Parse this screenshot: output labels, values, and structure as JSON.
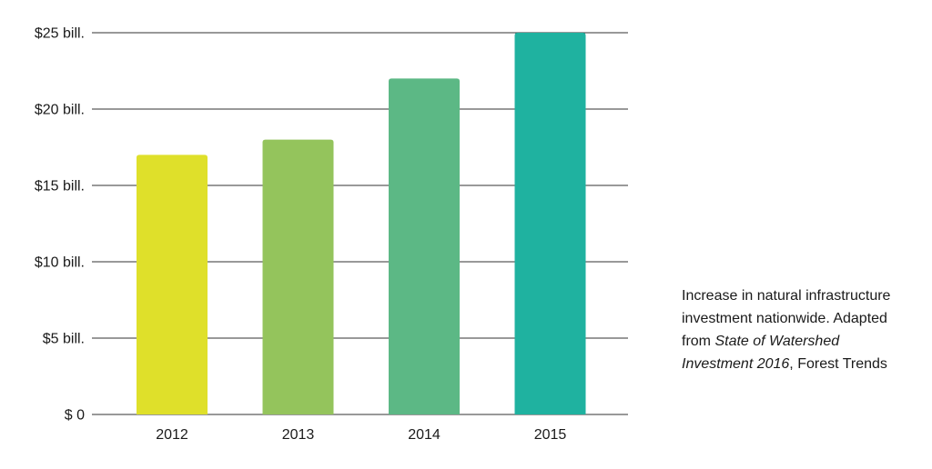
{
  "chart_data": {
    "type": "bar",
    "categories": [
      "2012",
      "2013",
      "2014",
      "2015"
    ],
    "values": [
      17,
      18,
      22,
      25
    ],
    "bar_colors": [
      "#dfe02a",
      "#94c45c",
      "#5cb885",
      "#1fb2a0"
    ],
    "ylim": [
      0,
      25
    ],
    "yticks": [
      0,
      5,
      10,
      15,
      20,
      25
    ],
    "ytick_labels": [
      "$ 0",
      "$5 bill.",
      "$10 bill.",
      "$15 bill.",
      "$20 bill.",
      "$25 bill."
    ],
    "grid": true
  },
  "caption": {
    "text_before": "Increase in natural infrastructure investment nationwide. Adapted from ",
    "citation": "State of  Watershed Investment 2016",
    "text_after": ", Forest Trends"
  }
}
